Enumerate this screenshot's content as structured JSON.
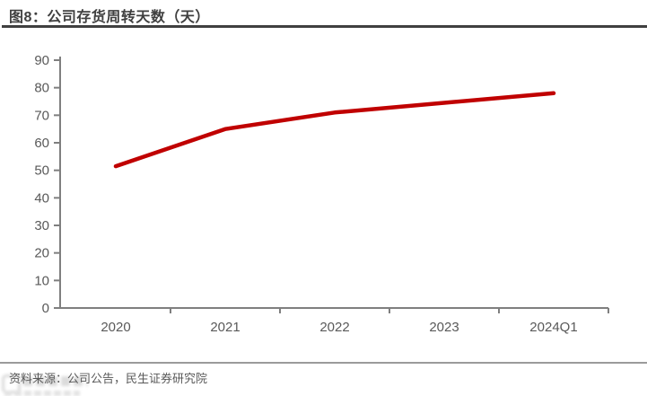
{
  "figure": {
    "title": "图8：公司存货周转天数（天）"
  },
  "footer": {
    "source_text": "资料来源：公司公告，民生证券研究院"
  },
  "colors": {
    "line": "#C00000",
    "axis": "#7F7F7F",
    "tick_label": "#595959",
    "title_text": "#3F3F3F",
    "title_rule": "#404040",
    "footer_rule": "#9B9B9B",
    "footer_text": "#595959"
  },
  "chart_data": {
    "type": "line",
    "title": "公司存货周转天数（天）",
    "categories": [
      "2020",
      "2021",
      "2022",
      "2023",
      "2024Q1"
    ],
    "values": [
      51.5,
      65,
      71,
      74.5,
      78
    ],
    "xlabel": "",
    "ylabel": "",
    "ylim": [
      0,
      90
    ],
    "ytick_interval": 10,
    "grid": false,
    "legend": false,
    "line_color": "#C00000"
  }
}
